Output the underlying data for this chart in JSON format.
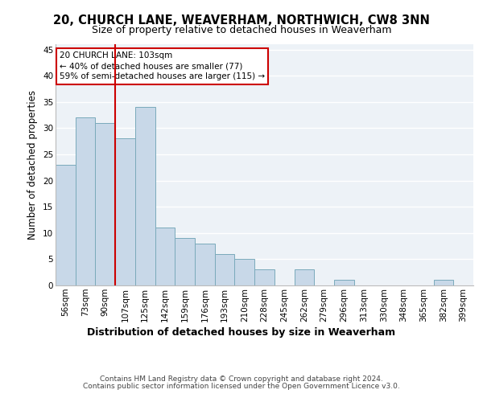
{
  "title1": "20, CHURCH LANE, WEAVERHAM, NORTHWICH, CW8 3NN",
  "title2": "Size of property relative to detached houses in Weaverham",
  "xlabel": "Distribution of detached houses by size in Weaverham",
  "ylabel": "Number of detached properties",
  "categories": [
    "56sqm",
    "73sqm",
    "90sqm",
    "107sqm",
    "125sqm",
    "142sqm",
    "159sqm",
    "176sqm",
    "193sqm",
    "210sqm",
    "228sqm",
    "245sqm",
    "262sqm",
    "279sqm",
    "296sqm",
    "313sqm",
    "330sqm",
    "348sqm",
    "365sqm",
    "382sqm",
    "399sqm"
  ],
  "values": [
    23,
    32,
    31,
    28,
    34,
    11,
    9,
    8,
    6,
    5,
    3,
    0,
    3,
    0,
    1,
    0,
    0,
    0,
    0,
    1,
    0
  ],
  "bar_color": "#c8d8e8",
  "bar_edge_color": "#7aaabb",
  "vline_color": "#cc0000",
  "annotation_lines": [
    "20 CHURCH LANE: 103sqm",
    "← 40% of detached houses are smaller (77)",
    "59% of semi-detached houses are larger (115) →"
  ],
  "annotation_box_color": "#cc0000",
  "ylim": [
    0,
    46
  ],
  "yticks": [
    0,
    5,
    10,
    15,
    20,
    25,
    30,
    35,
    40,
    45
  ],
  "background_color": "#edf2f7",
  "grid_color": "#ffffff",
  "footer_line1": "Contains HM Land Registry data © Crown copyright and database right 2024.",
  "footer_line2": "Contains public sector information licensed under the Open Government Licence v3.0.",
  "title1_fontsize": 10.5,
  "title2_fontsize": 9,
  "xlabel_fontsize": 9,
  "ylabel_fontsize": 8.5,
  "tick_fontsize": 7.5,
  "footer_fontsize": 6.5,
  "annot_fontsize": 7.5
}
